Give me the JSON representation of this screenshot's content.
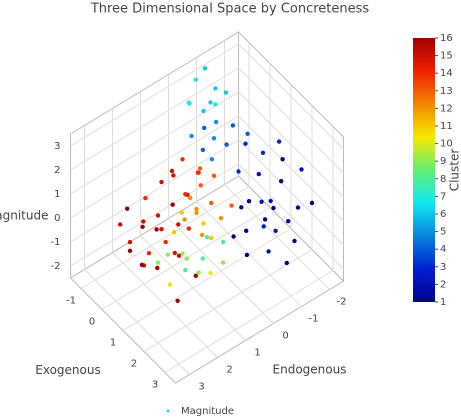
{
  "chart_data": {
    "type": "scatter3d",
    "title": "Three Dimensional Space by Concreteness",
    "x_label": "Exogenous",
    "y_label": "Endogenous",
    "z_label": "Magnitude",
    "xlim": [
      -1.5,
      3.5
    ],
    "xticks": [
      -1,
      0,
      1,
      2,
      3
    ],
    "ylim": [
      -2.5,
      3.5
    ],
    "yticks": [
      -2,
      -1,
      0,
      1,
      2,
      3
    ],
    "zlim": [
      -2.5,
      3.5
    ],
    "zticks": [
      -2,
      -1,
      0,
      1,
      2,
      3
    ],
    "colorbar_title": "Cluster",
    "clim": [
      1,
      16
    ],
    "cticks": [
      1,
      2,
      3,
      4,
      5,
      6,
      7,
      8,
      9,
      10,
      11,
      12,
      13,
      14,
      15,
      16
    ],
    "colorscale": [
      [
        0,
        "#00008f"
      ],
      [
        0.125,
        "#0020d0"
      ],
      [
        0.375,
        "#10e8f0"
      ],
      [
        0.5,
        "#60f070"
      ],
      [
        0.625,
        "#f8e800"
      ],
      [
        0.875,
        "#f02000"
      ],
      [
        1,
        "#a00000"
      ]
    ],
    "grid": true,
    "legend": "bottom",
    "series": [
      {
        "name": "Magnitude",
        "x": [
          1.0,
          1.5,
          2.0,
          1.2,
          0.8,
          1.8,
          2.2,
          1.4,
          0.6,
          1.0,
          2.5,
          1.6,
          0.9,
          2.0,
          1.3,
          0.5,
          1.7,
          2.4,
          1.1,
          0.7,
          1.9,
          2.8,
          0.3,
          1.5,
          1.2,
          0.0,
          0.3,
          -0.3,
          0.5,
          0.2,
          -0.5,
          0.8,
          0.0,
          0.6,
          -0.2,
          1.0,
          0.4,
          -0.6,
          0.2,
          0.9,
          -0.1,
          0.5,
          1.2,
          -0.4,
          0.7,
          0.1,
          1.4,
          -0.2,
          0.3,
          0.8,
          1.6,
          0.0,
          0.6,
          -0.3,
          1.1,
          0.5,
          0.8,
          0.2,
          1.0,
          0.6,
          0.3,
          1.2,
          0.9,
          0.4,
          0.7,
          1.1,
          0.2,
          1.3,
          0.0,
          0.5,
          0.5,
          0.8,
          0.2,
          1.0,
          0.6,
          1.3,
          0.3,
          0.9,
          1.5,
          0.7,
          1.1,
          0.4,
          -0.5,
          -0.3,
          -0.8,
          0.0,
          -0.6,
          -0.2,
          -1.0,
          0.2,
          -0.4,
          -0.7,
          0.1,
          -0.9,
          0.3,
          -0.5,
          0.0,
          -1.1,
          0.4,
          -0.2
        ],
        "y": [
          -1.0,
          -1.5,
          -1.2,
          -2.0,
          -1.5,
          -1.8,
          -0.8,
          -0.6,
          -1.8,
          -2.2,
          -1.5,
          -1.0,
          -0.8,
          -2.0,
          -1.3,
          -1.0,
          -0.4,
          -2.2,
          -1.7,
          -2.3,
          -0.9,
          -1.0,
          -1.4,
          -2.5,
          -0.3,
          1.5,
          1.2,
          1.8,
          1.6,
          2.2,
          1.0,
          1.0,
          2.5,
          2.0,
          0.8,
          1.5,
          2.8,
          1.5,
          0.6,
          2.2,
          1.3,
          0.9,
          1.8,
          2.3,
          1.3,
          1.9,
          1.2,
          2.7,
          0.3,
          2.6,
          2.0,
          1.0,
          0.5,
          0.4,
          2.9,
          0.5,
          0.2,
          0.8,
          0.0,
          1.0,
          0.2,
          0.5,
          0.8,
          -0.2,
          0.4,
          -0.3,
          0.5,
          0.9,
          0.0,
          1.3,
          1.0,
          0.5,
          1.3,
          0.8,
          0.2,
          0.6,
          0.7,
          1.2,
          0.3,
          1.6,
          0.0,
          1.8,
          -0.5,
          -0.8,
          -0.2,
          -0.5,
          -1.0,
          -0.3,
          -0.6,
          -0.8,
          0.0,
          -0.9,
          -1.1,
          -0.3,
          -0.2,
          -1.3,
          -0.1,
          -1.0,
          -1.4,
          -0.7
        ],
        "z": [
          -0.3,
          -0.5,
          -0.8,
          0.0,
          0.3,
          -1.0,
          -1.2,
          -0.9,
          0.8,
          0.6,
          -1.0,
          0.2,
          -0.5,
          -0.4,
          -1.3,
          0.5,
          -1.5,
          0.0,
          -0.7,
          1.0,
          -0.2,
          -1.3,
          1.2,
          0.4,
          -1.1,
          0.0,
          0.5,
          -0.3,
          -0.6,
          0.2,
          0.6,
          -0.2,
          -0.4,
          0.3,
          1.0,
          -0.8,
          -0.2,
          0.2,
          0.4,
          -0.9,
          -0.8,
          0.9,
          -0.3,
          0.5,
          0.1,
          -1.2,
          -1.5,
          0.3,
          1.2,
          -0.6,
          -1.8,
          1.5,
          1.6,
          1.3,
          -0.1,
          0.0,
          0.3,
          -0.2,
          -0.3,
          0.0,
          0.6,
          -0.6,
          0.4,
          0.8,
          -0.5,
          0.1,
          0.2,
          -0.1,
          0.9,
          -0.4,
          -1.5,
          -1.8,
          -1.6,
          -2.0,
          -1.3,
          -1.9,
          -2.1,
          -1.7,
          -1.5,
          -2.2,
          -1.2,
          -1.4,
          2.5,
          2.0,
          2.8,
          1.8,
          3.0,
          2.2,
          3.3,
          1.5,
          1.9,
          2.4,
          2.0,
          2.6,
          1.4,
          2.7,
          1.6,
          3.4,
          1.7,
          2.9
        ],
        "color_values": [
          1,
          1,
          2,
          1,
          2,
          1,
          2,
          1,
          3,
          1,
          1,
          2,
          1,
          1,
          2,
          3,
          1,
          1,
          2,
          3,
          1,
          1,
          3,
          2,
          1,
          15,
          16,
          15,
          14,
          16,
          15,
          14,
          15,
          16,
          15,
          15,
          16,
          14,
          15,
          16,
          15,
          14,
          15,
          16,
          15,
          14,
          16,
          15,
          14,
          15,
          16,
          15,
          14,
          14,
          16,
          12,
          13,
          11,
          12,
          12,
          13,
          11,
          12,
          13,
          11,
          13,
          12,
          12,
          13,
          11,
          9,
          8,
          9,
          9,
          8,
          10,
          9,
          8,
          9,
          10,
          8,
          9,
          6,
          5,
          7,
          5,
          6,
          4,
          7,
          4,
          5,
          6,
          4,
          7,
          5,
          6,
          4,
          6,
          4,
          7
        ]
      }
    ]
  }
}
